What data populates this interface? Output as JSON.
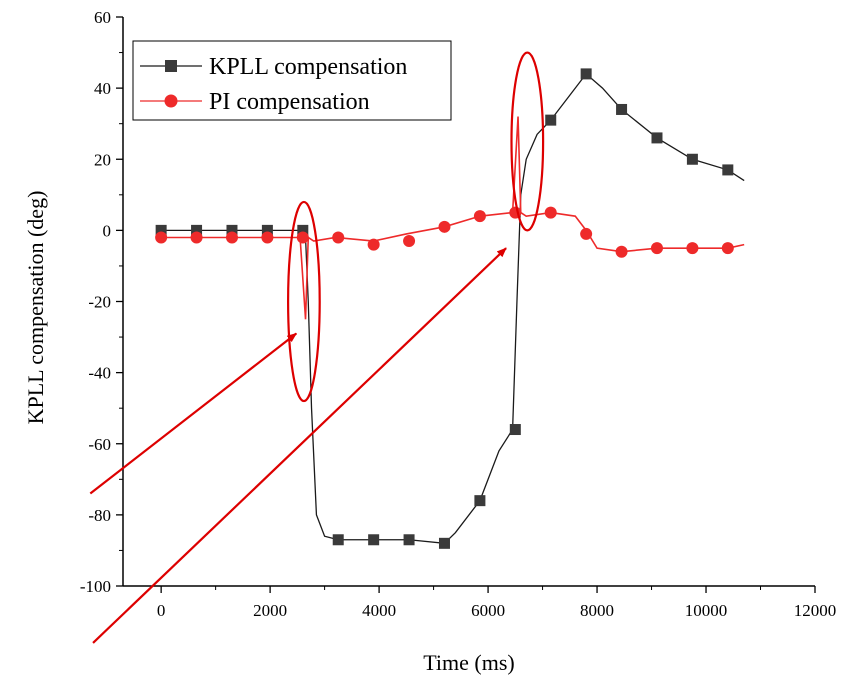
{
  "chart_data": {
    "type": "line",
    "xlabel": "Time (ms)",
    "ylabel": "KPLL compensation (deg)",
    "xlim": [
      -700,
      12000
    ],
    "ylim": [
      -100,
      60
    ],
    "xticks": [
      0,
      2000,
      4000,
      6000,
      8000,
      10000,
      12000
    ],
    "yticks": [
      -100,
      -80,
      -60,
      -40,
      -20,
      0,
      20,
      40,
      60
    ],
    "xtick_labels": [
      "0",
      "2000",
      "4000",
      "6000",
      "8000",
      "10000",
      "12000"
    ],
    "ytick_labels": [
      "-100",
      "-80",
      "-60",
      "-40",
      "-20",
      "0",
      "20",
      "40",
      "60"
    ],
    "legend_position": "top-left",
    "series": [
      {
        "name": "KPLL compensation",
        "color": "#1a1a1a",
        "marker": "square",
        "x": [
          0,
          650,
          1300,
          1950,
          2550,
          2650,
          2700,
          2760,
          2850,
          3000,
          3250,
          3900,
          4550,
          5200,
          5400,
          5850,
          6200,
          6450,
          6530,
          6600,
          6700,
          6900,
          7150,
          7500,
          7800,
          8100,
          8450,
          9100,
          9750,
          10400,
          10700
        ],
        "y": [
          0,
          0,
          0,
          0,
          0,
          -2,
          -20,
          -50,
          -80,
          -86,
          -87,
          -87,
          -87,
          -88,
          -85,
          -76,
          -62,
          -56,
          -20,
          10,
          20,
          27,
          31,
          38,
          44,
          40,
          34,
          26,
          20,
          17,
          14
        ],
        "marker_x": [
          0,
          650,
          1300,
          1950,
          2600,
          3250,
          3900,
          4550,
          5200,
          5850,
          6500,
          7150,
          7800,
          8450,
          9100,
          9750,
          10400
        ],
        "marker_y": [
          0,
          0,
          0,
          0,
          0,
          -87,
          -87,
          -87,
          -88,
          -76,
          -56,
          31,
          44,
          34,
          26,
          20,
          17
        ]
      },
      {
        "name": "PI compensation",
        "color": "#ee2a2a",
        "marker": "circle",
        "x": [
          0,
          650,
          1300,
          1950,
          2550,
          2650,
          2700,
          2800,
          3200,
          3900,
          4500,
          5200,
          5850,
          6450,
          6550,
          6600,
          6700,
          7150,
          7600,
          7800,
          8000,
          8450,
          9100,
          9750,
          10400,
          10700
        ],
        "y": [
          -2,
          -2,
          -2,
          -2,
          -2,
          -25,
          -2,
          -3,
          -2,
          -3,
          -1,
          1,
          4,
          5,
          32,
          5,
          4,
          5,
          4,
          0,
          -5,
          -6,
          -5,
          -5,
          -5,
          -4
        ],
        "marker_x": [
          0,
          650,
          1300,
          1950,
          2600,
          3250,
          3900,
          4550,
          5200,
          5850,
          6500,
          7150,
          7800,
          8450,
          9100,
          9750,
          10400
        ],
        "marker_y": [
          -2,
          -2,
          -2,
          -2,
          -2,
          -2,
          -4,
          -3,
          1,
          4,
          5,
          5,
          -1,
          -6,
          -5,
          -5,
          -5
        ]
      }
    ],
    "annotations": {
      "ellipses": [
        {
          "cx": 2620,
          "cy": -20,
          "rx": 290,
          "ry": 28,
          "color": "#dd0000"
        },
        {
          "cx": 6720,
          "cy": 25,
          "rx": 290,
          "ry": 25,
          "color": "#dd0000"
        }
      ],
      "arrows": [
        {
          "from": [
            -1300,
            -74
          ],
          "to": [
            2480,
            -29
          ],
          "color": "#dd0000"
        },
        {
          "from": [
            -1250,
            -116
          ],
          "to": [
            6330,
            -5
          ],
          "color": "#dd0000"
        }
      ]
    }
  }
}
